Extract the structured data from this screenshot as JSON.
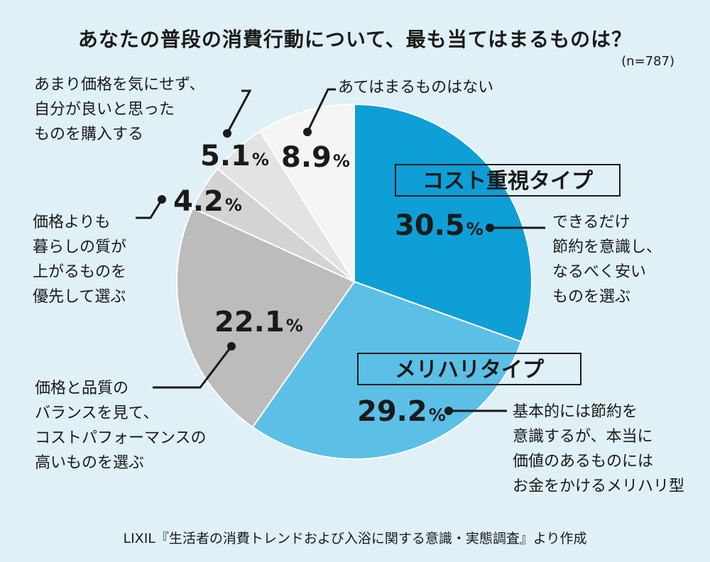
{
  "title": "あなたの普段の消費行動について、最も当てはまるものは？",
  "sample_size": "(n=787)",
  "source": "LIXIL『生活者の消費トレンドおよび入浴に関する意識・実態調査』より作成",
  "unit": "%",
  "chart_data": {
    "type": "pie",
    "start_angle_deg": 0,
    "direction": "clockwise",
    "slices": [
      {
        "label": "コスト重視タイプ",
        "description": "できるだけ\n節約を意識し、\nなるべく安い\nものを選ぶ",
        "value": 30.5,
        "value_text": "30.5",
        "color": "#0d9fd6"
      },
      {
        "label": "メリハリタイプ",
        "description": "基本的には節約を\n意識するが、本当に\n価値のあるものには\nお金をかけるメリハリ型",
        "value": 29.2,
        "value_text": "29.2",
        "color": "#5cbfe6"
      },
      {
        "label": "",
        "description": "価格と品質の\nバランスを見て、\nコストパフォーマンスの\n高いものを選ぶ",
        "value": 22.1,
        "value_text": "22.1",
        "color": "#bcbcbc"
      },
      {
        "label": "",
        "description": "価格よりも\n暮らしの質が\n上がるものを\n優先して選ぶ",
        "value": 4.2,
        "value_text": "4.2",
        "color": "#d3d3d3"
      },
      {
        "label": "",
        "description": "あまり価格を気にせず、\n自分が良いと思った\nものを購入する",
        "value": 5.1,
        "value_text": "5.1",
        "color": "#e3e3e3"
      },
      {
        "label": "",
        "description": "あてはまるものはない",
        "value": 8.9,
        "value_text": "8.9",
        "color": "#f4f4f4"
      }
    ]
  }
}
